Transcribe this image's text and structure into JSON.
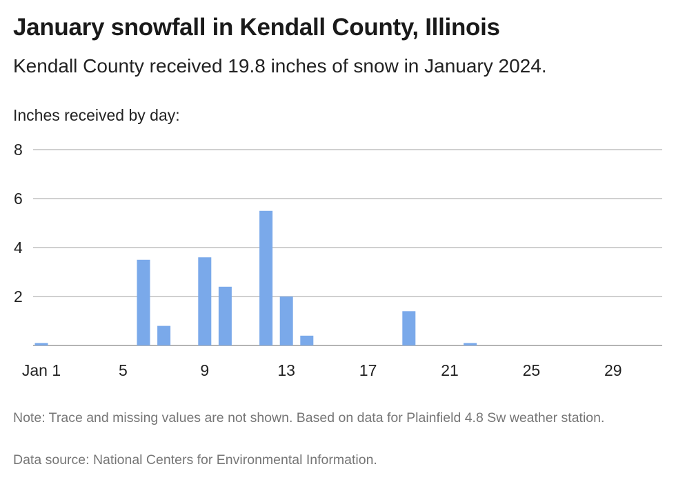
{
  "header": {
    "title": "January snowfall in Kendall County, Illinois",
    "subtitle": "Kendall County received 19.8 inches of snow in January 2024."
  },
  "footer": {
    "note": "Note: Trace and missing values are not shown. Based on data for Plainfield 4.8 Sw weather station.",
    "source": "Data source: National Centers for Environmental Information."
  },
  "chart_data": {
    "type": "bar",
    "title": "January snowfall in Kendall County, Illinois",
    "subtitle": "Kendall County received 19.8 inches of snow in January 2024.",
    "ylabel": "Inches received by day:",
    "xlabel": "",
    "ylim": [
      0,
      8
    ],
    "yticks": [
      2,
      4,
      6,
      8
    ],
    "xtick_labels": [
      {
        "day": 1,
        "label": "Jan 1"
      },
      {
        "day": 5,
        "label": "5"
      },
      {
        "day": 9,
        "label": "9"
      },
      {
        "day": 13,
        "label": "13"
      },
      {
        "day": 17,
        "label": "17"
      },
      {
        "day": 21,
        "label": "21"
      },
      {
        "day": 25,
        "label": "25"
      },
      {
        "day": 29,
        "label": "29"
      }
    ],
    "categories": [
      1,
      2,
      3,
      4,
      5,
      6,
      7,
      8,
      9,
      10,
      11,
      12,
      13,
      14,
      15,
      16,
      17,
      18,
      19,
      20,
      21,
      22,
      23,
      24,
      25,
      26,
      27,
      28,
      29,
      30,
      31
    ],
    "values": [
      0.1,
      0,
      0,
      0,
      0,
      3.5,
      0.8,
      0,
      3.6,
      2.4,
      0,
      5.5,
      2.0,
      0.4,
      0,
      0,
      0,
      0,
      1.4,
      0,
      0,
      0.1,
      0,
      0,
      0,
      0,
      0,
      0,
      0,
      0,
      0
    ],
    "bar_color": "#7aa9ea",
    "grid_color": "#b3b3b3",
    "grid": true
  }
}
